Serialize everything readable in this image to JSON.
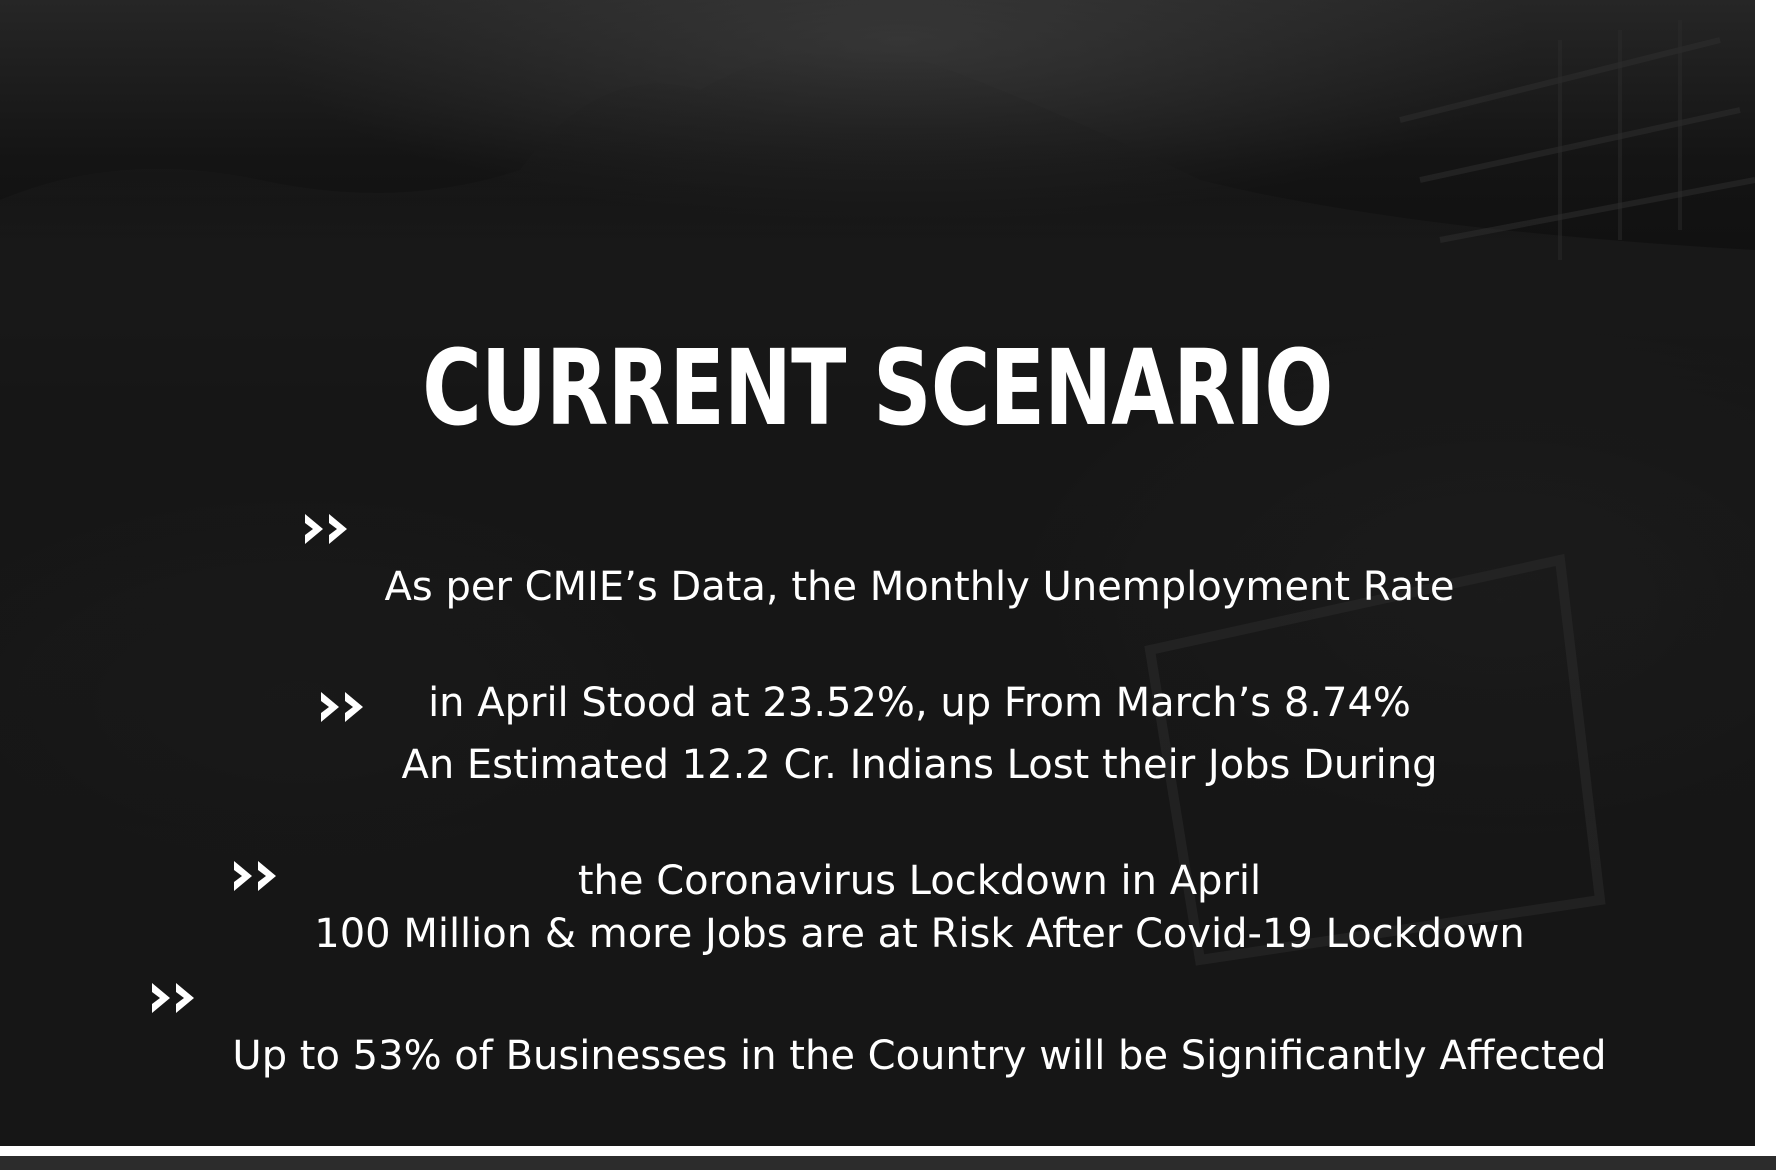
{
  "slide": {
    "title": "CURRENT SCENARIO",
    "bullet_icon": "double-chevron-right-icon",
    "text_color": "#ffffff",
    "background_color": "#0b0b0b",
    "bullets": [
      {
        "line1": "As per CMIE’s Data, the Monthly Unemployment Rate",
        "line2": "in April Stood at 23.52%, up From March’s 8.74%"
      },
      {
        "line1": "An Estimated 12.2 Cr. Indians Lost their Jobs During",
        "line2": "the Coronavirus Lockdown in April"
      },
      {
        "line1": "100 Million & more Jobs are at Risk After Covid-19 Lockdown",
        "line2": ""
      },
      {
        "line1": "Up to 53% of Businesses in the Country will be Significantly Affected",
        "line2": ""
      }
    ]
  }
}
